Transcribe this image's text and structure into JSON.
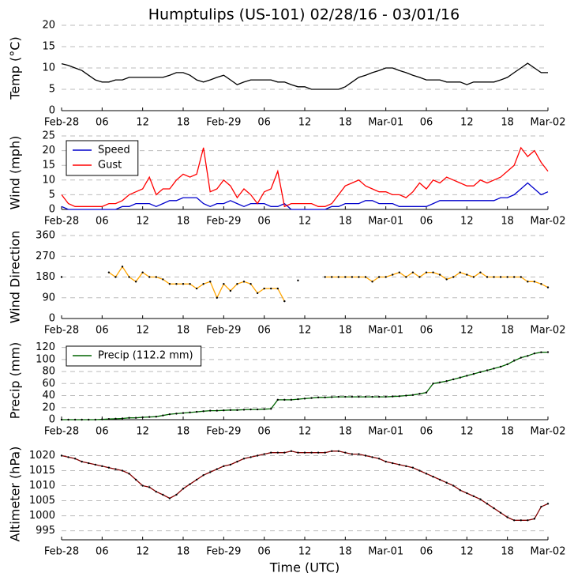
{
  "title": "Humptulips (US-101) 02/28/16 - 03/01/16",
  "chart_data": [
    {
      "type": "line",
      "ylabel": "Temp (°C)",
      "ylim": [
        0,
        20
      ],
      "yticks": [
        0,
        5,
        10,
        15,
        20
      ],
      "grid": true,
      "xlim": [
        0,
        72
      ],
      "xticks": [
        {
          "value": 0,
          "label": "Feb-28"
        },
        {
          "value": 6,
          "label": "06"
        },
        {
          "value": 12,
          "label": "12"
        },
        {
          "value": 18,
          "label": "18"
        },
        {
          "value": 24,
          "label": "Feb-29"
        },
        {
          "value": 30,
          "label": "06"
        },
        {
          "value": 36,
          "label": "12"
        },
        {
          "value": 42,
          "label": "18"
        },
        {
          "value": 48,
          "label": "Mar-01"
        },
        {
          "value": 54,
          "label": "06"
        },
        {
          "value": 60,
          "label": "12"
        },
        {
          "value": 66,
          "label": "18"
        },
        {
          "value": 72,
          "label": "Mar-02"
        }
      ],
      "x": [
        0,
        1,
        2,
        3,
        4,
        5,
        6,
        7,
        8,
        9,
        10,
        11,
        12,
        13,
        14,
        15,
        16,
        17,
        18,
        19,
        20,
        21,
        22,
        23,
        24,
        25,
        26,
        27,
        28,
        29,
        30,
        31,
        32,
        33,
        34,
        35,
        36,
        37,
        38,
        39,
        40,
        41,
        42,
        43,
        44,
        45,
        46,
        47,
        48,
        49,
        50,
        51,
        52,
        53,
        54,
        55,
        56,
        57,
        58,
        59,
        60,
        61,
        62,
        63,
        64,
        65,
        66,
        67,
        68,
        69,
        70,
        71,
        72
      ],
      "series": [
        {
          "color": "#000000",
          "values": [
            11,
            10.6,
            10,
            9.4,
            8.3,
            7.2,
            6.7,
            6.7,
            7.2,
            7.2,
            7.8,
            7.8,
            7.8,
            7.8,
            7.8,
            7.8,
            8.3,
            8.9,
            8.9,
            8.3,
            7.2,
            6.7,
            7.2,
            7.8,
            8.3,
            7.2,
            6.1,
            6.7,
            7.2,
            7.2,
            7.2,
            7.2,
            6.7,
            6.7,
            6.1,
            5.6,
            5.6,
            5,
            5,
            5,
            5,
            5,
            5.6,
            6.7,
            7.8,
            8.3,
            8.9,
            9.4,
            10,
            10,
            9.4,
            8.9,
            8.3,
            7.8,
            7.2,
            7.2,
            7.2,
            6.7,
            6.7,
            6.7,
            6.1,
            6.7,
            6.7,
            6.7,
            6.7,
            7.2,
            7.8,
            8.9,
            10,
            11.1,
            10,
            8.9,
            8.9
          ]
        }
      ]
    },
    {
      "type": "line",
      "ylabel": "Wind (mph)",
      "ylim": [
        0,
        25
      ],
      "yticks": [
        0,
        5,
        10,
        15,
        20,
        25
      ],
      "grid": true,
      "legend": "upper left",
      "xlim": [
        0,
        72
      ],
      "xticks": [
        {
          "value": 0,
          "label": "Feb-28"
        },
        {
          "value": 6,
          "label": "06"
        },
        {
          "value": 12,
          "label": "12"
        },
        {
          "value": 18,
          "label": "18"
        },
        {
          "value": 24,
          "label": "Feb-29"
        },
        {
          "value": 30,
          "label": "06"
        },
        {
          "value": 36,
          "label": "12"
        },
        {
          "value": 42,
          "label": "18"
        },
        {
          "value": 48,
          "label": "Mar-01"
        },
        {
          "value": 54,
          "label": "06"
        },
        {
          "value": 60,
          "label": "12"
        },
        {
          "value": 66,
          "label": "18"
        },
        {
          "value": 72,
          "label": "Mar-02"
        }
      ],
      "x": [
        0,
        1,
        2,
        3,
        4,
        5,
        6,
        7,
        8,
        9,
        10,
        11,
        12,
        13,
        14,
        15,
        16,
        17,
        18,
        19,
        20,
        21,
        22,
        23,
        24,
        25,
        26,
        27,
        28,
        29,
        30,
        31,
        32,
        33,
        34,
        35,
        36,
        37,
        38,
        39,
        40,
        41,
        42,
        43,
        44,
        45,
        46,
        47,
        48,
        49,
        50,
        51,
        52,
        53,
        54,
        55,
        56,
        57,
        58,
        59,
        60,
        61,
        62,
        63,
        64,
        65,
        66,
        67,
        68,
        69,
        70,
        71,
        72
      ],
      "series": [
        {
          "name": "Speed",
          "color": "#0000cc",
          "values": [
            1,
            0,
            0,
            0,
            0,
            0,
            0,
            0,
            0,
            1,
            1,
            2,
            2,
            2,
            1,
            2,
            3,
            3,
            4,
            4,
            4,
            2,
            1,
            2,
            2,
            3,
            2,
            1,
            2,
            2,
            2,
            1,
            1,
            2,
            0,
            0,
            0,
            0,
            0,
            0,
            1,
            1,
            2,
            2,
            2,
            3,
            3,
            2,
            2,
            2,
            1,
            1,
            1,
            1,
            1,
            2,
            3,
            3,
            3,
            3,
            3,
            3,
            3,
            3,
            3,
            4,
            4,
            5,
            7,
            9,
            7,
            5,
            6
          ]
        },
        {
          "name": "Gust",
          "color": "#ff0000",
          "values": [
            5,
            2,
            1,
            1,
            1,
            1,
            1,
            2,
            2,
            3,
            5,
            6,
            7,
            11,
            5,
            7,
            7,
            10,
            12,
            11,
            12,
            21,
            6,
            7,
            10,
            8,
            4,
            7,
            5,
            2,
            6,
            7,
            13,
            1,
            2,
            2,
            2,
            2,
            1,
            1,
            2,
            5,
            8,
            9,
            10,
            8,
            7,
            6,
            6,
            5,
            5,
            4,
            6,
            9,
            7,
            10,
            9,
            11,
            10,
            9,
            8,
            8,
            10,
            9,
            10,
            11,
            13,
            15,
            21,
            18,
            20,
            16,
            13
          ]
        }
      ]
    },
    {
      "type": "line",
      "ylabel": "Wind Direction",
      "ylim": [
        0,
        360
      ],
      "yticks": [
        0,
        90,
        180,
        270,
        360
      ],
      "grid": true,
      "xlim": [
        0,
        72
      ],
      "xticks": [
        {
          "value": 0,
          "label": "Feb-28"
        },
        {
          "value": 6,
          "label": "06"
        },
        {
          "value": 12,
          "label": "12"
        },
        {
          "value": 18,
          "label": "18"
        },
        {
          "value": 24,
          "label": "Feb-29"
        },
        {
          "value": 30,
          "label": "06"
        },
        {
          "value": 36,
          "label": "12"
        },
        {
          "value": 42,
          "label": "18"
        },
        {
          "value": 48,
          "label": "Mar-01"
        },
        {
          "value": 54,
          "label": "06"
        },
        {
          "value": 60,
          "label": "12"
        },
        {
          "value": 66,
          "label": "18"
        },
        {
          "value": 72,
          "label": "Mar-02"
        }
      ],
      "x": [
        0,
        1,
        2,
        3,
        4,
        5,
        6,
        7,
        8,
        9,
        10,
        11,
        12,
        13,
        14,
        15,
        16,
        17,
        18,
        19,
        20,
        21,
        22,
        23,
        24,
        25,
        26,
        27,
        28,
        29,
        30,
        31,
        32,
        33,
        34,
        35,
        36,
        37,
        38,
        39,
        40,
        41,
        42,
        43,
        44,
        45,
        46,
        47,
        48,
        49,
        50,
        51,
        52,
        53,
        54,
        55,
        56,
        57,
        58,
        59,
        60,
        61,
        62,
        63,
        64,
        65,
        66,
        67,
        68,
        69,
        70,
        71,
        72
      ],
      "series": [
        {
          "color": "#ffa500",
          "marker_color": "#000000",
          "values": [
            180,
            null,
            null,
            null,
            null,
            null,
            null,
            200,
            180,
            225,
            180,
            160,
            200,
            180,
            180,
            170,
            150,
            150,
            150,
            150,
            130,
            150,
            160,
            90,
            150,
            120,
            150,
            160,
            150,
            110,
            130,
            130,
            130,
            75,
            null,
            165,
            null,
            null,
            null,
            180,
            180,
            180,
            180,
            180,
            180,
            180,
            160,
            180,
            180,
            190,
            200,
            180,
            200,
            180,
            200,
            200,
            190,
            170,
            180,
            200,
            190,
            180,
            200,
            180,
            180,
            180,
            180,
            180,
            180,
            160,
            160,
            150,
            135
          ]
        }
      ]
    },
    {
      "type": "line",
      "ylabel": "Precip (mm)",
      "ylim": [
        0,
        130
      ],
      "yticks": [
        0,
        20,
        40,
        60,
        80,
        100,
        120
      ],
      "grid": true,
      "legend": "upper left",
      "xlim": [
        0,
        72
      ],
      "xticks": [
        {
          "value": 0,
          "label": "Feb-28"
        },
        {
          "value": 6,
          "label": "06"
        },
        {
          "value": 12,
          "label": "12"
        },
        {
          "value": 18,
          "label": "18"
        },
        {
          "value": 24,
          "label": "Feb-29"
        },
        {
          "value": 30,
          "label": "06"
        },
        {
          "value": 36,
          "label": "12"
        },
        {
          "value": 42,
          "label": "18"
        },
        {
          "value": 48,
          "label": "Mar-01"
        },
        {
          "value": 54,
          "label": "06"
        },
        {
          "value": 60,
          "label": "12"
        },
        {
          "value": 66,
          "label": "18"
        },
        {
          "value": 72,
          "label": "Mar-02"
        }
      ],
      "x": [
        0,
        1,
        2,
        3,
        4,
        5,
        6,
        7,
        8,
        9,
        10,
        11,
        12,
        13,
        14,
        15,
        16,
        17,
        18,
        19,
        20,
        21,
        22,
        23,
        24,
        25,
        26,
        27,
        28,
        29,
        30,
        31,
        32,
        33,
        34,
        35,
        36,
        37,
        38,
        39,
        40,
        41,
        42,
        43,
        44,
        45,
        46,
        47,
        48,
        49,
        50,
        51,
        52,
        53,
        54,
        55,
        56,
        57,
        58,
        59,
        60,
        61,
        62,
        63,
        64,
        65,
        66,
        67,
        68,
        69,
        70,
        71,
        72
      ],
      "series": [
        {
          "name": "Precip (112.2 mm)",
          "color": "#006400",
          "marker_color": "#000000",
          "values": [
            0,
            0,
            0,
            0,
            0,
            0,
            0.5,
            1,
            1.5,
            2,
            3,
            3,
            4,
            4.5,
            5,
            7,
            9,
            10,
            11,
            12,
            13,
            14,
            15,
            15,
            15.5,
            16,
            16,
            16.5,
            17,
            17,
            17.5,
            18,
            33,
            33,
            33,
            34,
            35,
            36,
            37,
            37,
            37.5,
            38,
            38,
            38,
            38,
            38,
            38,
            38,
            38,
            38.5,
            39,
            40,
            41,
            43,
            45,
            60,
            62,
            64,
            67,
            70,
            73,
            76,
            79,
            82,
            85,
            88,
            92,
            98,
            103,
            106,
            110,
            112,
            112.2
          ]
        }
      ]
    },
    {
      "type": "line",
      "ylabel": "Altimeter (hPa)",
      "xlabel": "Time (UTC)",
      "ylim": [
        992,
        1022.5
      ],
      "yticks": [
        995,
        1000,
        1005,
        1010,
        1015,
        1020
      ],
      "grid": true,
      "xlim": [
        0,
        72
      ],
      "xticks": [
        {
          "value": 0,
          "label": "Feb-28"
        },
        {
          "value": 6,
          "label": "06"
        },
        {
          "value": 12,
          "label": "12"
        },
        {
          "value": 18,
          "label": "18"
        },
        {
          "value": 24,
          "label": "Feb-29"
        },
        {
          "value": 30,
          "label": "06"
        },
        {
          "value": 36,
          "label": "12"
        },
        {
          "value": 42,
          "label": "18"
        },
        {
          "value": 48,
          "label": "Mar-01"
        },
        {
          "value": 54,
          "label": "06"
        },
        {
          "value": 60,
          "label": "12"
        },
        {
          "value": 66,
          "label": "18"
        },
        {
          "value": 72,
          "label": "Mar-02"
        }
      ],
      "x": [
        0,
        1,
        2,
        3,
        4,
        5,
        6,
        7,
        8,
        9,
        10,
        11,
        12,
        13,
        14,
        15,
        16,
        17,
        18,
        19,
        20,
        21,
        22,
        23,
        24,
        25,
        26,
        27,
        28,
        29,
        30,
        31,
        32,
        33,
        34,
        35,
        36,
        37,
        38,
        39,
        40,
        41,
        42,
        43,
        44,
        45,
        46,
        47,
        48,
        49,
        50,
        51,
        52,
        53,
        54,
        55,
        56,
        57,
        58,
        59,
        60,
        61,
        62,
        63,
        64,
        65,
        66,
        67,
        68,
        69,
        70,
        71,
        72
      ],
      "series": [
        {
          "color": "#800000",
          "marker_color": "#000000",
          "values": [
            1020,
            1019.5,
            1019,
            1018,
            1017.5,
            1017,
            1016.5,
            1016,
            1015.5,
            1015,
            1014,
            1012,
            1010,
            1009.5,
            1008,
            1007,
            1005.8,
            1007,
            1009,
            1010.5,
            1012,
            1013.5,
            1014.5,
            1015.5,
            1016.5,
            1017,
            1018,
            1019,
            1019.5,
            1020,
            1020.5,
            1021,
            1021,
            1021,
            1021.5,
            1021,
            1021,
            1021,
            1021,
            1021,
            1021.5,
            1021.5,
            1021,
            1020.5,
            1020.5,
            1020,
            1019.5,
            1019,
            1018,
            1017.5,
            1017,
            1016.5,
            1016,
            1015,
            1014,
            1013,
            1012,
            1011,
            1010,
            1008.5,
            1007.5,
            1006.5,
            1005.5,
            1004,
            1002.5,
            1001,
            999.5,
            998.5,
            998.5,
            998.5,
            999,
            1003,
            1004
          ]
        }
      ]
    }
  ]
}
